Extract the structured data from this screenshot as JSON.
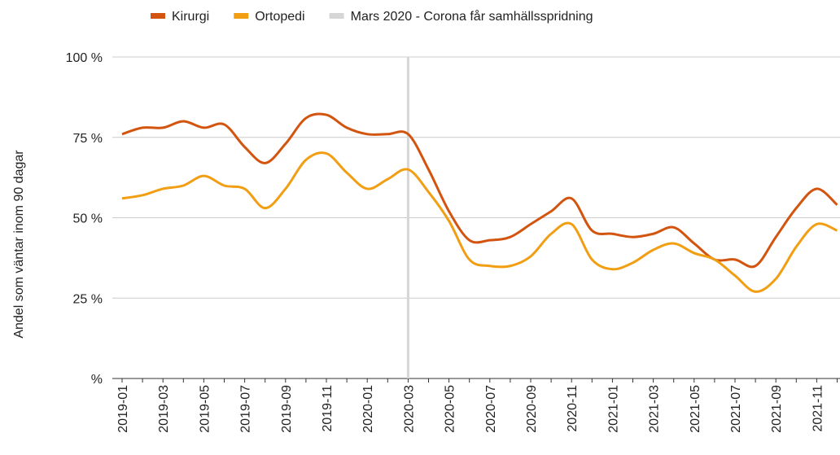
{
  "chart_data": {
    "type": "line",
    "y_label": "Andel som väntar inom 90 dagar",
    "categories": [
      "2019-01",
      null,
      "2019-03",
      null,
      "2019-05",
      null,
      "2019-07",
      null,
      "2019-09",
      null,
      "2019-11",
      null,
      "2020-01",
      null,
      "2020-03",
      null,
      "2020-05",
      null,
      "2020-07",
      null,
      "2020-09",
      null,
      "2020-11",
      null,
      "2021-01",
      null,
      "2021-03",
      null,
      "2021-05",
      null,
      "2021-07",
      null,
      "2021-09",
      null,
      "2021-11",
      null
    ],
    "series": [
      {
        "name": "Kirurgi",
        "color": "#d2540f",
        "values": [
          76,
          78,
          78,
          80,
          78,
          79,
          72,
          67,
          73,
          81,
          82,
          78,
          76,
          76,
          76,
          65,
          52,
          43,
          43,
          44,
          48,
          52,
          56,
          46,
          45,
          44,
          45,
          47,
          42,
          37,
          37,
          35,
          44,
          53,
          59,
          54
        ]
      },
      {
        "name": "Ortopedi",
        "color": "#f19e13",
        "values": [
          56,
          57,
          59,
          60,
          63,
          60,
          59,
          53,
          59,
          68,
          70,
          64,
          59,
          62,
          65,
          58,
          49,
          37,
          35,
          35,
          38,
          45,
          48,
          37,
          34,
          36,
          40,
          42,
          39,
          37,
          32,
          27,
          31,
          41,
          48,
          46
        ]
      }
    ],
    "marker": {
      "name": "Mars 2020 - Corona får samhällsspridning",
      "color": "#d6d6d6",
      "at": "2020-03"
    },
    "ylim": [
      0,
      100
    ],
    "yticks": [
      {
        "value": 0,
        "label": "%"
      },
      {
        "value": 25,
        "label": "25 %"
      },
      {
        "value": 50,
        "label": "50 %"
      },
      {
        "value": 75,
        "label": "75 %"
      },
      {
        "value": 100,
        "label": "100 %"
      }
    ],
    "grid": true
  }
}
